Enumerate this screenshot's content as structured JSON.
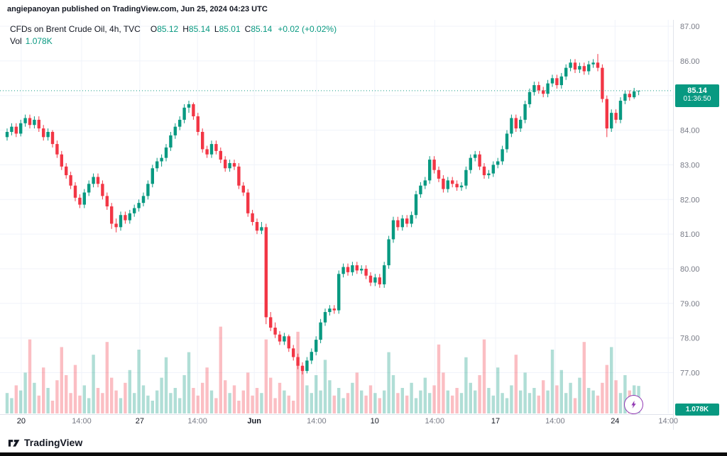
{
  "attribution": "angiepanoyan published on TradingView.com, Jun 25, 2024 04:23 UTC",
  "header": {
    "title": "CFDs on Brent Crude Oil, 4h, TVC",
    "ohlc": [
      {
        "label": "O",
        "value": "85.12"
      },
      {
        "label": "H",
        "value": "85.14"
      },
      {
        "label": "L",
        "value": "85.01"
      },
      {
        "label": "C",
        "value": "85.14"
      }
    ],
    "change": "+0.02 (+0.02%)",
    "vol_label": "Vol",
    "vol_value": "1.078K"
  },
  "last_price": {
    "value": "85.14",
    "countdown": "01:36:50"
  },
  "volume_badge": "1.078K",
  "footer": {
    "brand": "TradingView"
  },
  "colors": {
    "up": "#089981",
    "down": "#F23645",
    "vol_up": "rgba(8,153,129,0.32)",
    "vol_down": "rgba(242,54,69,0.32)",
    "grid": "#f0f3fa",
    "axis_line": "#e0e3eb",
    "axis_text": "#787b86",
    "text": "#131722",
    "accent": "#089981"
  },
  "chart_data": {
    "type": "candlestick",
    "title": "CFDs on Brent Crude Oil",
    "interval": "4h",
    "exchange": "TVC",
    "last": 85.14,
    "open": 85.12,
    "high": 85.14,
    "low": 85.01,
    "close": 85.14,
    "change": 0.02,
    "change_pct": 0.02,
    "volume_last": "1.078K",
    "ylim": [
      76.8,
      87.15
    ],
    "price_axis_values": [
      87,
      86,
      85,
      84,
      83,
      82,
      81,
      80,
      79,
      78,
      77
    ],
    "price_axis_labels": [
      "87.00",
      "86.00",
      "85.00",
      "84.00",
      "83.00",
      "82.00",
      "81.00",
      "80.00",
      "79.00",
      "78.00",
      "77.00"
    ],
    "time_ticks": [
      {
        "label": "20",
        "pos": 3.1,
        "major": true
      },
      {
        "label": "14:00",
        "pos": 16.4,
        "major": false
      },
      {
        "label": "27",
        "pos": 29.2,
        "major": true
      },
      {
        "label": "14:00",
        "pos": 41.9,
        "major": false
      },
      {
        "label": "Jun",
        "pos": 54.4,
        "major": true
      },
      {
        "label": "14:00",
        "pos": 68.1,
        "major": false
      },
      {
        "label": "10",
        "pos": 80.9,
        "major": true
      },
      {
        "label": "14:00",
        "pos": 94.1,
        "major": false
      },
      {
        "label": "17",
        "pos": 107.5,
        "major": true
      },
      {
        "label": "14:00",
        "pos": 120.6,
        "major": false
      },
      {
        "label": "24",
        "pos": 133.8,
        "major": true
      },
      {
        "label": "14:00",
        "pos": 145.5,
        "major": false
      }
    ],
    "candles": [
      [
        83.8,
        84.05,
        83.7,
        83.95
      ],
      [
        83.95,
        84.2,
        83.85,
        84.1
      ],
      [
        84.1,
        84.2,
        83.8,
        83.9
      ],
      [
        83.9,
        84.3,
        83.82,
        84.2
      ],
      [
        84.2,
        84.45,
        84.1,
        84.35
      ],
      [
        84.35,
        84.45,
        84.05,
        84.15
      ],
      [
        84.15,
        84.4,
        84.05,
        84.3
      ],
      [
        84.3,
        84.4,
        83.95,
        84.05
      ],
      [
        84.05,
        84.15,
        83.7,
        83.8
      ],
      [
        83.8,
        84.05,
        83.7,
        83.95
      ],
      [
        83.95,
        84.0,
        83.5,
        83.6
      ],
      [
        83.6,
        83.7,
        83.2,
        83.3
      ],
      [
        83.3,
        83.4,
        82.85,
        82.95
      ],
      [
        82.95,
        83.05,
        82.6,
        82.7
      ],
      [
        82.7,
        82.8,
        82.3,
        82.4
      ],
      [
        82.4,
        82.5,
        81.95,
        82.05
      ],
      [
        82.05,
        82.15,
        81.75,
        81.85
      ],
      [
        81.85,
        82.3,
        81.75,
        82.2
      ],
      [
        82.2,
        82.55,
        82.1,
        82.45
      ],
      [
        82.45,
        82.75,
        82.35,
        82.65
      ],
      [
        82.65,
        82.75,
        82.35,
        82.45
      ],
      [
        82.45,
        82.55,
        82.0,
        82.1
      ],
      [
        82.1,
        82.2,
        81.7,
        81.8
      ],
      [
        81.8,
        81.9,
        81.15,
        81.3
      ],
      [
        81.3,
        81.45,
        81.05,
        81.2
      ],
      [
        81.2,
        81.65,
        81.1,
        81.55
      ],
      [
        81.55,
        81.65,
        81.3,
        81.4
      ],
      [
        81.4,
        81.7,
        81.3,
        81.6
      ],
      [
        81.6,
        81.85,
        81.5,
        81.75
      ],
      [
        81.75,
        82.0,
        81.65,
        81.9
      ],
      [
        81.9,
        82.2,
        81.8,
        82.1
      ],
      [
        82.1,
        82.55,
        82.0,
        82.45
      ],
      [
        82.45,
        83.0,
        82.35,
        82.9
      ],
      [
        82.9,
        83.2,
        82.8,
        83.1
      ],
      [
        83.1,
        83.3,
        82.95,
        83.2
      ],
      [
        83.2,
        83.6,
        83.1,
        83.5
      ],
      [
        83.5,
        83.95,
        83.4,
        83.85
      ],
      [
        83.85,
        84.2,
        83.75,
        84.1
      ],
      [
        84.1,
        84.4,
        84.0,
        84.3
      ],
      [
        84.3,
        84.75,
        84.2,
        84.65
      ],
      [
        84.65,
        84.85,
        84.5,
        84.75
      ],
      [
        84.75,
        84.8,
        84.3,
        84.4
      ],
      [
        84.4,
        84.5,
        83.85,
        83.95
      ],
      [
        83.95,
        84.05,
        83.35,
        83.45
      ],
      [
        83.45,
        83.55,
        83.2,
        83.3
      ],
      [
        83.3,
        83.7,
        83.2,
        83.6
      ],
      [
        83.6,
        83.7,
        83.3,
        83.4
      ],
      [
        83.4,
        83.5,
        83.05,
        83.15
      ],
      [
        83.15,
        83.25,
        82.8,
        82.9
      ],
      [
        82.9,
        83.15,
        82.8,
        83.05
      ],
      [
        83.05,
        83.15,
        82.85,
        82.95
      ],
      [
        82.95,
        83.05,
        82.3,
        82.4
      ],
      [
        82.4,
        82.5,
        82.1,
        82.2
      ],
      [
        82.2,
        82.3,
        81.5,
        81.6
      ],
      [
        81.6,
        81.7,
        81.25,
        81.35
      ],
      [
        81.35,
        81.45,
        81.0,
        81.1
      ],
      [
        81.1,
        81.35,
        81.0,
        81.2
      ],
      [
        81.2,
        81.3,
        78.4,
        78.6
      ],
      [
        78.6,
        78.75,
        78.2,
        78.3
      ],
      [
        78.3,
        78.45,
        78.0,
        78.1
      ],
      [
        78.1,
        78.2,
        77.8,
        77.9
      ],
      [
        77.9,
        78.15,
        77.8,
        78.05
      ],
      [
        78.05,
        78.1,
        77.6,
        77.7
      ],
      [
        77.7,
        77.8,
        77.35,
        77.45
      ],
      [
        77.45,
        77.55,
        77.1,
        77.2
      ],
      [
        77.2,
        77.3,
        76.95,
        77.05
      ],
      [
        77.05,
        77.45,
        76.98,
        77.35
      ],
      [
        77.35,
        77.7,
        77.25,
        77.6
      ],
      [
        77.6,
        78.05,
        77.5,
        77.95
      ],
      [
        77.95,
        78.55,
        77.85,
        78.45
      ],
      [
        78.45,
        78.85,
        78.35,
        78.75
      ],
      [
        78.75,
        78.95,
        78.65,
        78.85
      ],
      [
        78.85,
        78.95,
        78.7,
        78.8
      ],
      [
        78.8,
        79.95,
        78.7,
        79.85
      ],
      [
        79.85,
        80.15,
        79.75,
        80.05
      ],
      [
        80.05,
        80.15,
        79.8,
        79.9
      ],
      [
        79.9,
        80.2,
        79.8,
        80.1
      ],
      [
        80.1,
        80.2,
        79.85,
        79.95
      ],
      [
        79.95,
        80.1,
        79.85,
        80.0
      ],
      [
        80.0,
        80.1,
        79.7,
        79.8
      ],
      [
        79.8,
        79.9,
        79.5,
        79.6
      ],
      [
        79.6,
        79.85,
        79.5,
        79.75
      ],
      [
        79.75,
        79.85,
        79.45,
        79.55
      ],
      [
        79.55,
        80.2,
        79.45,
        80.1
      ],
      [
        80.1,
        80.95,
        80.0,
        80.85
      ],
      [
        80.85,
        81.5,
        80.75,
        81.4
      ],
      [
        81.4,
        81.5,
        81.1,
        81.2
      ],
      [
        81.2,
        81.55,
        81.1,
        81.45
      ],
      [
        81.45,
        81.55,
        81.2,
        81.3
      ],
      [
        81.3,
        81.65,
        81.2,
        81.55
      ],
      [
        81.55,
        82.25,
        81.45,
        82.15
      ],
      [
        82.15,
        82.5,
        82.05,
        82.4
      ],
      [
        82.4,
        82.65,
        82.3,
        82.55
      ],
      [
        82.55,
        83.25,
        82.45,
        83.15
      ],
      [
        83.15,
        83.25,
        82.75,
        82.85
      ],
      [
        82.85,
        82.95,
        82.5,
        82.6
      ],
      [
        82.6,
        82.7,
        82.2,
        82.3
      ],
      [
        82.3,
        82.65,
        82.2,
        82.55
      ],
      [
        82.55,
        82.65,
        82.35,
        82.45
      ],
      [
        82.45,
        82.55,
        82.25,
        82.35
      ],
      [
        82.35,
        82.5,
        82.25,
        82.4
      ],
      [
        82.4,
        82.95,
        82.3,
        82.85
      ],
      [
        82.85,
        83.3,
        82.75,
        83.2
      ],
      [
        83.2,
        83.4,
        83.1,
        83.3
      ],
      [
        83.3,
        83.4,
        82.85,
        82.95
      ],
      [
        82.95,
        83.05,
        82.6,
        82.7
      ],
      [
        82.7,
        82.85,
        82.6,
        82.75
      ],
      [
        82.75,
        83.1,
        82.65,
        83.0
      ],
      [
        83.0,
        83.2,
        82.9,
        83.1
      ],
      [
        83.1,
        83.55,
        83.0,
        83.45
      ],
      [
        83.45,
        84.0,
        83.35,
        83.9
      ],
      [
        83.9,
        84.45,
        83.8,
        84.35
      ],
      [
        84.35,
        84.45,
        83.95,
        84.05
      ],
      [
        84.05,
        84.4,
        83.95,
        84.3
      ],
      [
        84.3,
        84.85,
        84.2,
        84.75
      ],
      [
        84.75,
        85.2,
        84.65,
        85.1
      ],
      [
        85.1,
        85.4,
        85.0,
        85.3
      ],
      [
        85.3,
        85.4,
        85.05,
        85.15
      ],
      [
        85.15,
        85.25,
        84.95,
        85.05
      ],
      [
        85.05,
        85.45,
        84.95,
        85.35
      ],
      [
        85.35,
        85.6,
        85.25,
        85.5
      ],
      [
        85.5,
        85.6,
        85.2,
        85.3
      ],
      [
        85.3,
        85.65,
        85.2,
        85.55
      ],
      [
        85.55,
        85.9,
        85.45,
        85.8
      ],
      [
        85.8,
        86.05,
        85.7,
        85.95
      ],
      [
        85.95,
        86.05,
        85.65,
        85.75
      ],
      [
        85.75,
        85.95,
        85.65,
        85.85
      ],
      [
        85.85,
        85.95,
        85.6,
        85.7
      ],
      [
        85.7,
        86.0,
        85.6,
        85.9
      ],
      [
        85.9,
        86.05,
        85.8,
        85.95
      ],
      [
        85.95,
        86.2,
        85.7,
        85.8
      ],
      [
        85.8,
        85.9,
        84.8,
        84.9
      ],
      [
        84.9,
        85.0,
        83.8,
        84.05
      ],
      [
        84.05,
        84.6,
        83.95,
        84.5
      ],
      [
        84.5,
        84.6,
        84.2,
        84.3
      ],
      [
        84.3,
        84.95,
        84.2,
        84.85
      ],
      [
        84.85,
        85.15,
        84.75,
        85.05
      ],
      [
        85.05,
        85.15,
        84.85,
        84.95
      ],
      [
        84.95,
        85.22,
        84.9,
        85.12
      ],
      [
        85.12,
        85.14,
        85.01,
        85.14
      ]
    ],
    "volumes": [
      0.8,
      0.6,
      1.1,
      0.9,
      1.6,
      2.9,
      1.2,
      0.7,
      1.8,
      1.0,
      0.5,
      1.3,
      2.6,
      1.5,
      0.8,
      1.9,
      0.7,
      1.1,
      0.6,
      2.3,
      1.0,
      0.8,
      2.8,
      1.4,
      0.9,
      0.6,
      1.2,
      1.7,
      0.8,
      2.5,
      1.1,
      0.7,
      0.5,
      0.9,
      1.4,
      2.2,
      0.8,
      1.0,
      0.6,
      1.5,
      2.4,
      1.0,
      0.7,
      1.2,
      1.8,
      0.9,
      0.6,
      3.4,
      1.3,
      0.8,
      1.1,
      0.5,
      0.9,
      1.6,
      0.7,
      1.0,
      0.8,
      2.9,
      1.4,
      0.6,
      1.2,
      0.9,
      0.7,
      0.5,
      3.2,
      1.8,
      1.1,
      0.8,
      1.5,
      0.9,
      2.1,
      1.3,
      0.7,
      1.0,
      0.6,
      0.8,
      1.2,
      1.6,
      0.9,
      0.7,
      1.1,
      0.8,
      0.6,
      0.9,
      2.4,
      1.5,
      0.8,
      1.0,
      0.7,
      1.2,
      0.6,
      0.9,
      1.4,
      0.8,
      1.1,
      2.7,
      1.6,
      0.9,
      0.7,
      1.0,
      0.8,
      2.2,
      1.2,
      0.9,
      1.5,
      2.9,
      1.0,
      0.7,
      1.8,
      0.8,
      0.6,
      1.1,
      2.3,
      0.9,
      1.6,
      0.8,
      1.0,
      0.7,
      1.3,
      0.9,
      2.5,
      1.1,
      1.7,
      0.8,
      1.2,
      0.6,
      1.4,
      2.8,
      1.0,
      0.9,
      0.7,
      1.2,
      1.9,
      2.6,
      1.3,
      0.8,
      1.5,
      0.9,
      1.1,
      1.078
    ]
  }
}
